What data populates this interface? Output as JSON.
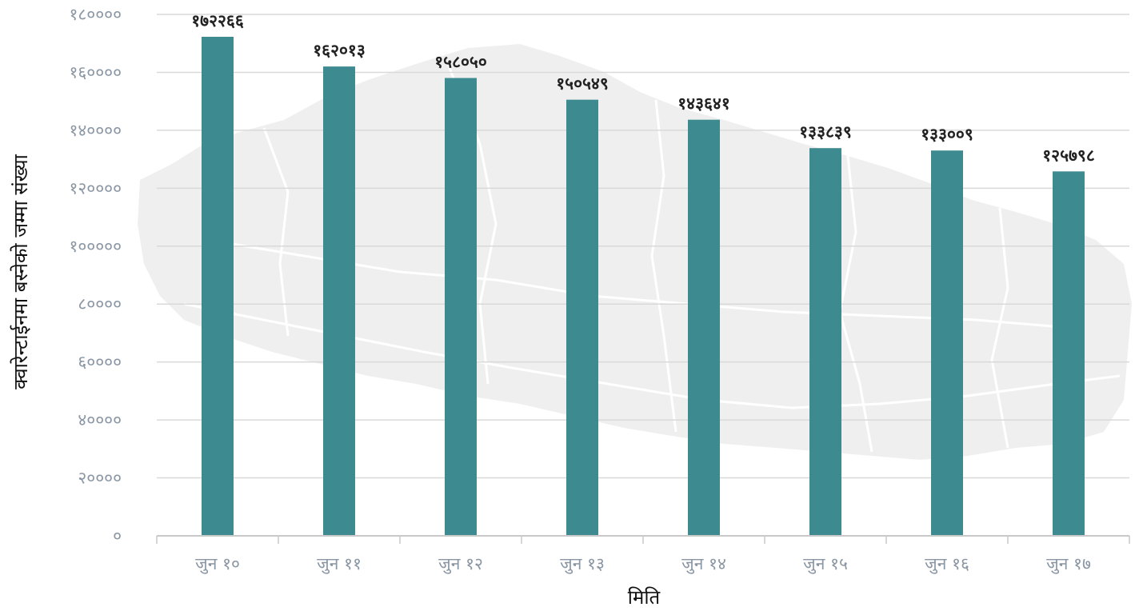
{
  "chart_data": {
    "type": "bar",
    "title": "",
    "xlabel": "मिति",
    "ylabel": "क्वारेन्टाईनमा बस्नेको जम्मा संख्या",
    "ylim": [
      0,
      180000
    ],
    "grid": true,
    "y_ticks": [
      0,
      20000,
      40000,
      60000,
      80000,
      100000,
      120000,
      140000,
      160000,
      180000
    ],
    "y_tick_labels": [
      "०",
      "२००००",
      "४००००",
      "६००००",
      "८००००",
      "१०००००",
      "१२००००",
      "१४००००",
      "१६००००",
      "१८००००"
    ],
    "categories": [
      "जुन १०",
      "जुन ११",
      "जुन १२",
      "जुन १३",
      "जुन १४",
      "जुन १५",
      "जुन १६",
      "जुन १७"
    ],
    "values": [
      172266,
      162013,
      158050,
      150549,
      143641,
      133839,
      133009,
      125798
    ],
    "value_labels": [
      "१७२२६६",
      "१६२०१३",
      "१५८०५०",
      "१५०५४९",
      "१४३६४१",
      "१३३८३९",
      "१३३००९",
      "१२५७९८"
    ],
    "colors": {
      "bar": "#3d8a91",
      "map": "#efefef"
    }
  }
}
